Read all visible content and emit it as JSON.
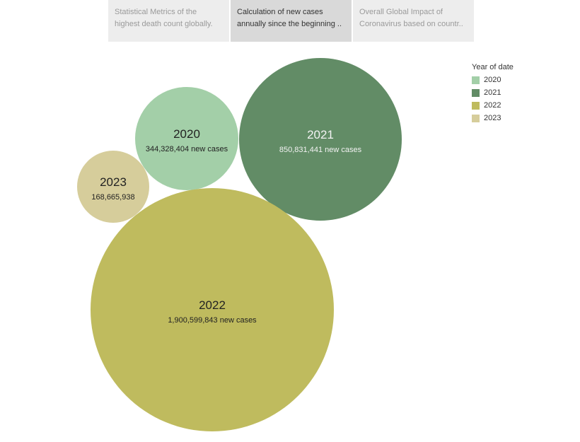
{
  "tabs": [
    {
      "line1": "Statistical Metrics of the",
      "line2": "highest death count globally.",
      "active": false
    },
    {
      "line1": "Calculation of new cases",
      "line2": "annually since the beginning ..",
      "active": true
    },
    {
      "line1": "Overall Global Impact of",
      "line2": "Coronavirus based on countr..",
      "active": false
    }
  ],
  "legend": {
    "title": "Year of date",
    "items": [
      {
        "label": "2020",
        "color": "#a3cfa8"
      },
      {
        "label": "2021",
        "color": "#628c66"
      },
      {
        "label": "2022",
        "color": "#bfbb5e"
      },
      {
        "label": "2023",
        "color": "#d6cd9b"
      }
    ]
  },
  "chart_data": {
    "type": "bubble",
    "series": [
      {
        "name": "2020",
        "value": 344328404,
        "value_label": "344,328,404 new cases",
        "color": "#a3cfa8"
      },
      {
        "name": "2021",
        "value": 850831441,
        "value_label": "850,831,441 new cases",
        "color": "#628c66"
      },
      {
        "name": "2022",
        "value": 1900599843,
        "value_label": "1,900,599,843 new cases",
        "color": "#bfbb5e"
      },
      {
        "name": "2023",
        "value": 168665938,
        "value_label": "168,665,938",
        "color": "#d6cd9b"
      }
    ]
  }
}
